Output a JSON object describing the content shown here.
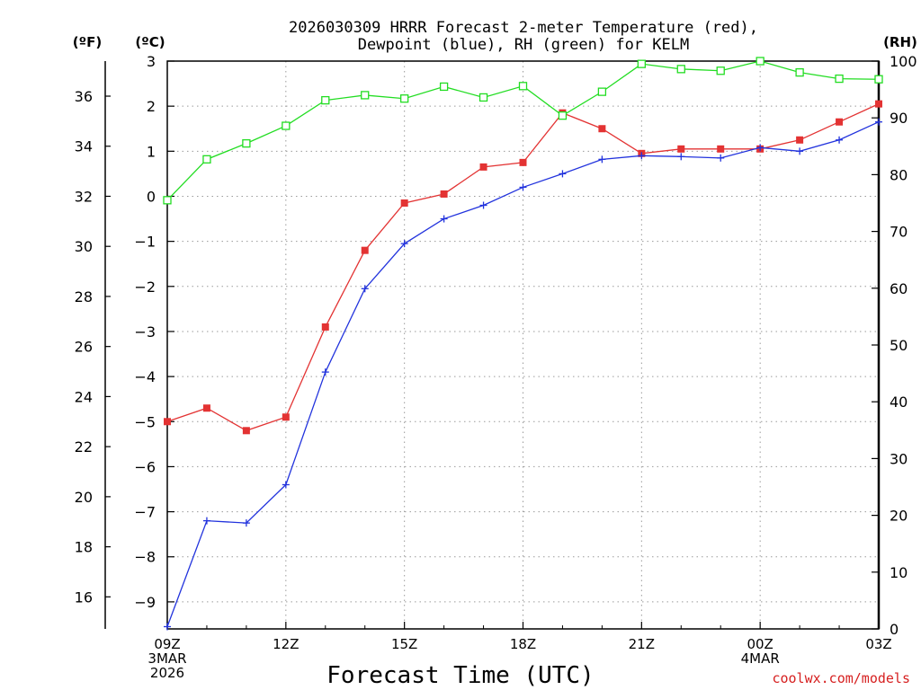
{
  "chart_data": {
    "type": "line",
    "title_line1": "2026030309 HRRR Forecast 2-meter Temperature (red),",
    "title_line2": "Dewpoint (blue), RH (green) for KELM",
    "left_outer_unit": "(ºF)",
    "left_inner_unit": "(ºC)",
    "right_unit": "(RH)",
    "xlabel": "Forecast Time (UTC)",
    "credit": "coolwx.com/models",
    "x_hours": [
      0,
      1,
      2,
      3,
      4,
      5,
      6,
      7,
      8,
      9,
      10,
      11,
      12,
      13,
      14,
      15,
      16,
      17,
      18
    ],
    "x_ticks": [
      {
        "hour": 0,
        "lines": [
          "09Z",
          "3MAR",
          "2026"
        ]
      },
      {
        "hour": 3,
        "lines": [
          "12Z"
        ]
      },
      {
        "hour": 6,
        "lines": [
          "15Z"
        ]
      },
      {
        "hour": 9,
        "lines": [
          "18Z"
        ]
      },
      {
        "hour": 12,
        "lines": [
          "21Z"
        ]
      },
      {
        "hour": 15,
        "lines": [
          "00Z",
          "4MAR"
        ]
      },
      {
        "hour": 18,
        "lines": [
          "03Z"
        ]
      }
    ],
    "ylim_celsius": [
      -9.6,
      3
    ],
    "celsius_ticks": [
      "3",
      "2",
      "1",
      "0",
      "−1",
      "−2",
      "−3",
      "−4",
      "−5",
      "−6",
      "−7",
      "−8",
      "−9"
    ],
    "fahrenheit_ticks": [
      "36",
      "34",
      "32",
      "30",
      "28",
      "26",
      "24",
      "22",
      "20",
      "18",
      "16"
    ],
    "ylim_rh": [
      0,
      100
    ],
    "rh_ticks": [
      "100",
      "90",
      "80",
      "70",
      "60",
      "50",
      "40",
      "30",
      "20",
      "10",
      "0"
    ],
    "series": [
      {
        "name": "2-meter Temperature",
        "unit": "°C",
        "color": "#e33333",
        "marker": "filled-square",
        "values": [
          -5.0,
          -4.7,
          -5.2,
          -4.9,
          -2.9,
          -1.2,
          -0.15,
          0.05,
          0.65,
          0.75,
          1.85,
          1.5,
          0.95,
          1.05,
          1.05,
          1.05,
          1.25,
          1.65,
          2.05
        ]
      },
      {
        "name": "Dewpoint",
        "unit": "°C",
        "color": "#2233dd",
        "marker": "plus",
        "values": [
          -9.55,
          -7.2,
          -7.25,
          -6.4,
          -3.9,
          -2.05,
          -1.05,
          -0.5,
          -0.2,
          0.2,
          0.5,
          0.82,
          0.9,
          0.88,
          0.85,
          1.08,
          1.0,
          1.25,
          1.65
        ]
      },
      {
        "name": "Relative Humidity",
        "unit": "%",
        "color": "#22dd22",
        "marker": "open-square",
        "values": [
          75.5,
          82.7,
          85.5,
          88.6,
          93.1,
          94.0,
          93.4,
          95.5,
          93.6,
          95.6,
          90.4,
          94.6,
          99.5,
          98.6,
          98.3,
          100.0,
          98.0,
          96.9,
          96.8
        ]
      }
    ]
  }
}
